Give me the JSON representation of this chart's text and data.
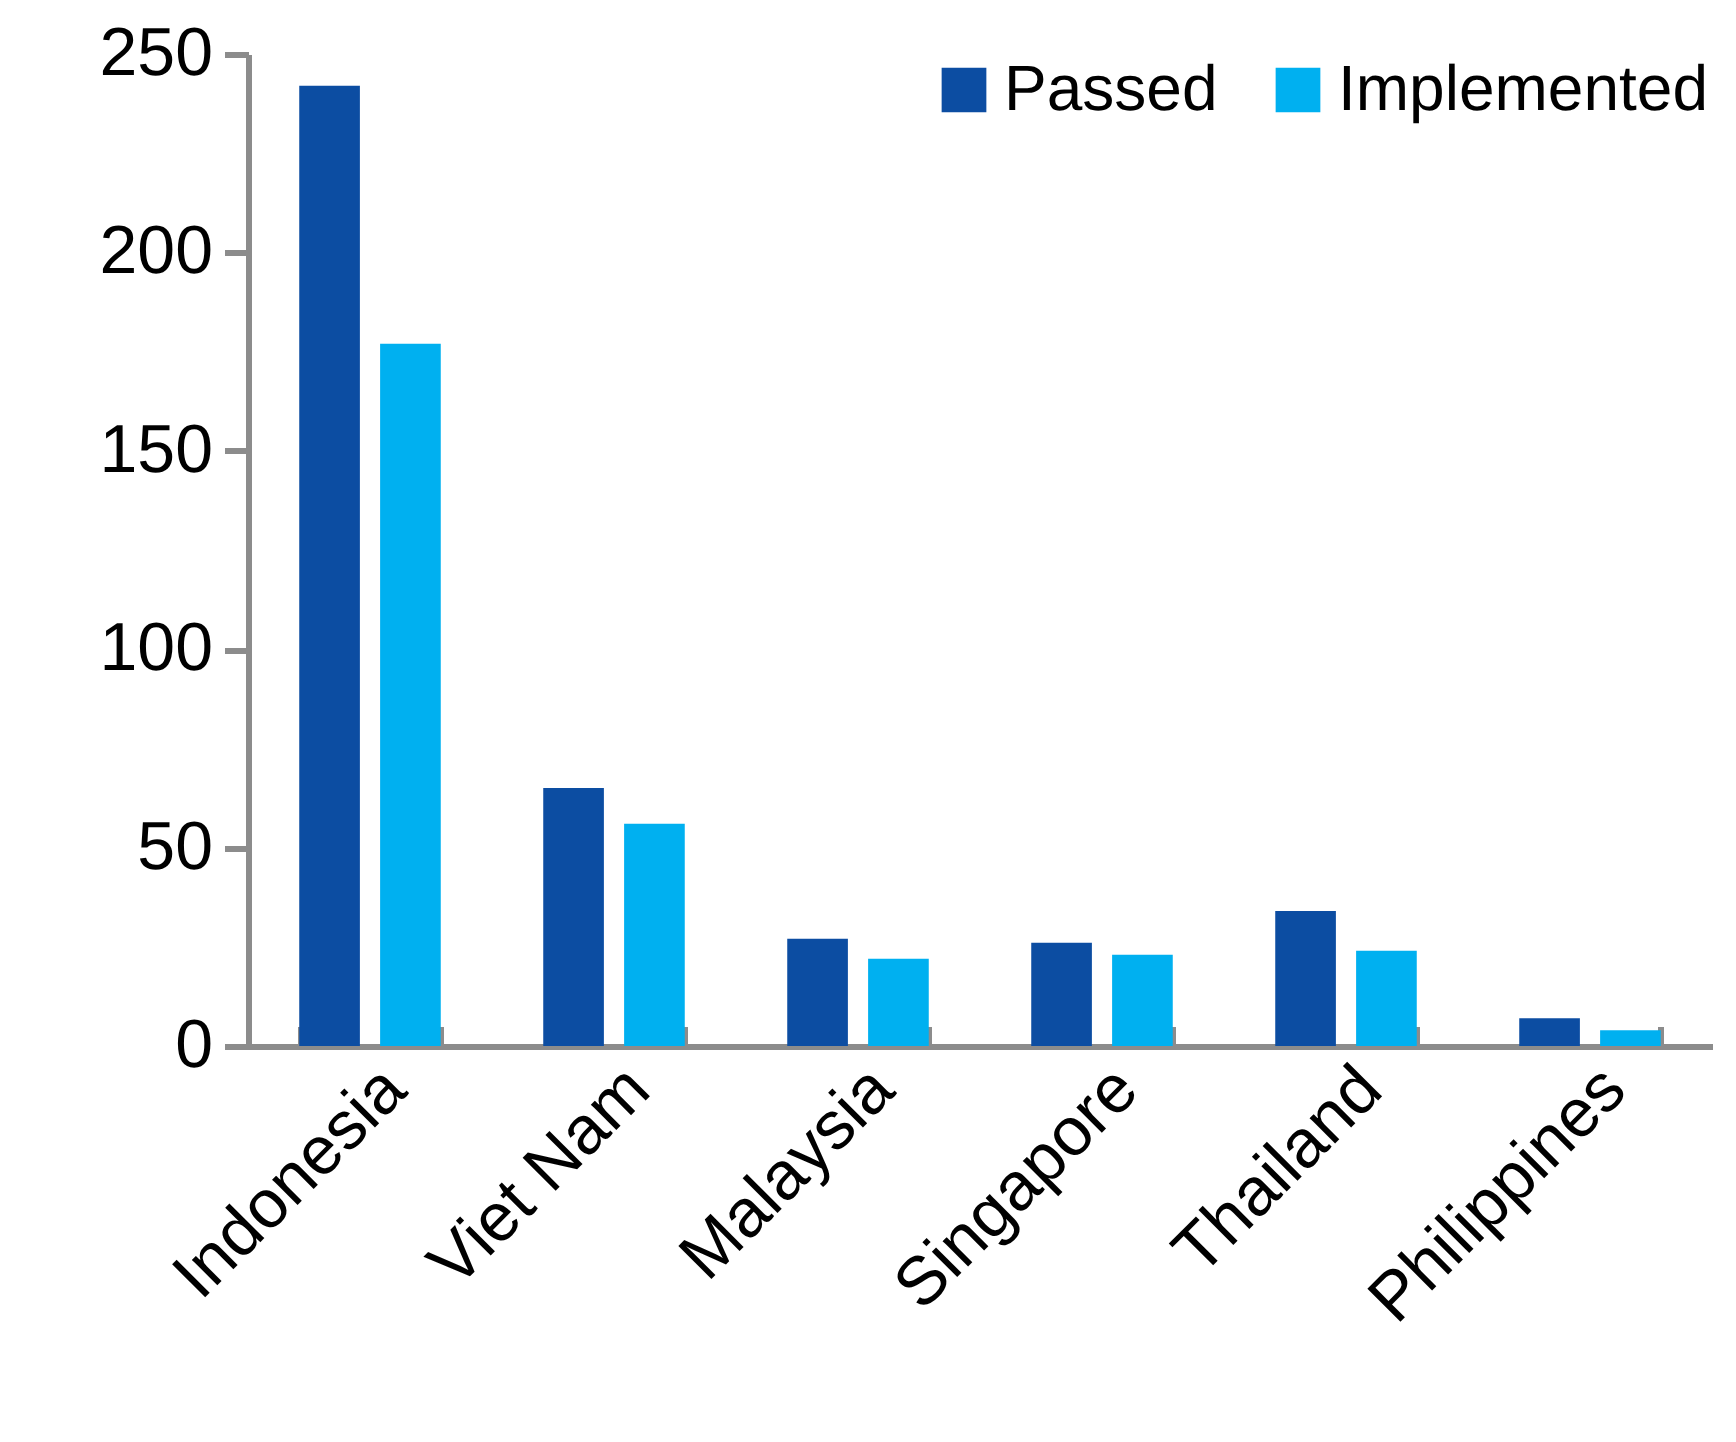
{
  "chart_data": {
    "type": "bar",
    "categories": [
      "Indonesia",
      "Viet Nam",
      "Malaysia",
      "Singapore",
      "Thailand",
      "Philippines"
    ],
    "series": [
      {
        "name": "Passed",
        "color": "#0c4da2",
        "values": [
          242,
          65,
          27,
          26,
          34,
          7
        ]
      },
      {
        "name": "Implemented",
        "color": "#00b0f0",
        "values": [
          177,
          56,
          22,
          23,
          24,
          4
        ]
      }
    ],
    "ylim": [
      0,
      250
    ],
    "yticks": [
      0,
      50,
      100,
      150,
      200,
      250
    ],
    "grid": false,
    "legend": "top right"
  }
}
